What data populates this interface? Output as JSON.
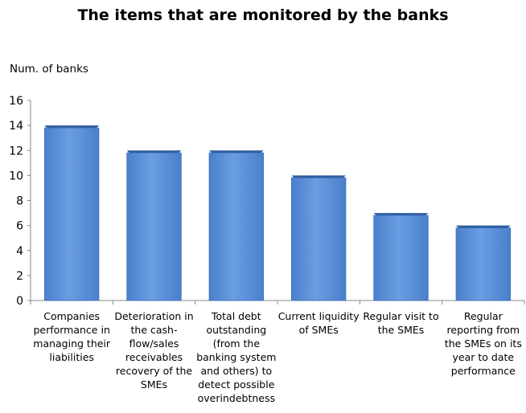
{
  "chart_data": {
    "type": "bar",
    "title": "The items that are monitored by the banks",
    "ylabel": "Num. of banks",
    "xlabel": "",
    "ylim": [
      0,
      16
    ],
    "yticks": [
      0,
      2,
      4,
      6,
      8,
      10,
      12,
      14,
      16
    ],
    "grid": false,
    "legend": "none",
    "bar_color": "#5b8fd6",
    "bar_edge_color": "#3f6fb8",
    "categories": [
      [
        "Companies",
        "performance in",
        "managing their",
        "liabilities"
      ],
      [
        "Deterioration in",
        "the cash-",
        "flow/sales",
        "receivables",
        "recovery of the",
        "SMEs"
      ],
      [
        "Total debt",
        "outstanding",
        "(from the",
        "banking system",
        "and others) to",
        "detect possible",
        "overindebtness"
      ],
      [
        "Current liquidity",
        "of SMEs"
      ],
      [
        "Regular visit to",
        "the SMEs"
      ],
      [
        "Regular",
        "reporting from",
        "the SMEs on its",
        "year to date",
        "performance"
      ]
    ],
    "values": [
      14,
      12,
      12,
      10,
      7,
      6
    ]
  }
}
